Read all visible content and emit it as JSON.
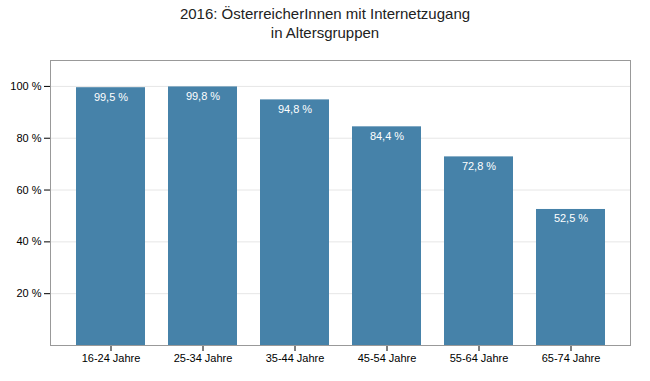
{
  "chart_data": {
    "type": "bar",
    "title": "2016: ÖsterreicherInnen mit Internetzugang\nin Altersgruppen",
    "categories": [
      "16-24 Jahre",
      "25-34 Jahre",
      "35-44 Jahre",
      "45-54 Jahre",
      "55-64 Jahre",
      "65-74 Jahre"
    ],
    "values": [
      99.5,
      99.8,
      94.8,
      84.4,
      72.8,
      52.5
    ],
    "value_labels": [
      "99,5 %",
      "99,8 %",
      "94,8 %",
      "84,4 %",
      "72,8 %",
      "52,5 %"
    ],
    "data_labels": true,
    "color": "#4682a9",
    "ylim": [
      0,
      110
    ],
    "yticks": [
      {
        "value": 20,
        "label": "20 %"
      },
      {
        "value": 40,
        "label": "40 %"
      },
      {
        "value": 60,
        "label": "60 %"
      },
      {
        "value": 80,
        "label": "80 %"
      },
      {
        "value": 100,
        "label": "100 %"
      }
    ],
    "grid": true
  }
}
